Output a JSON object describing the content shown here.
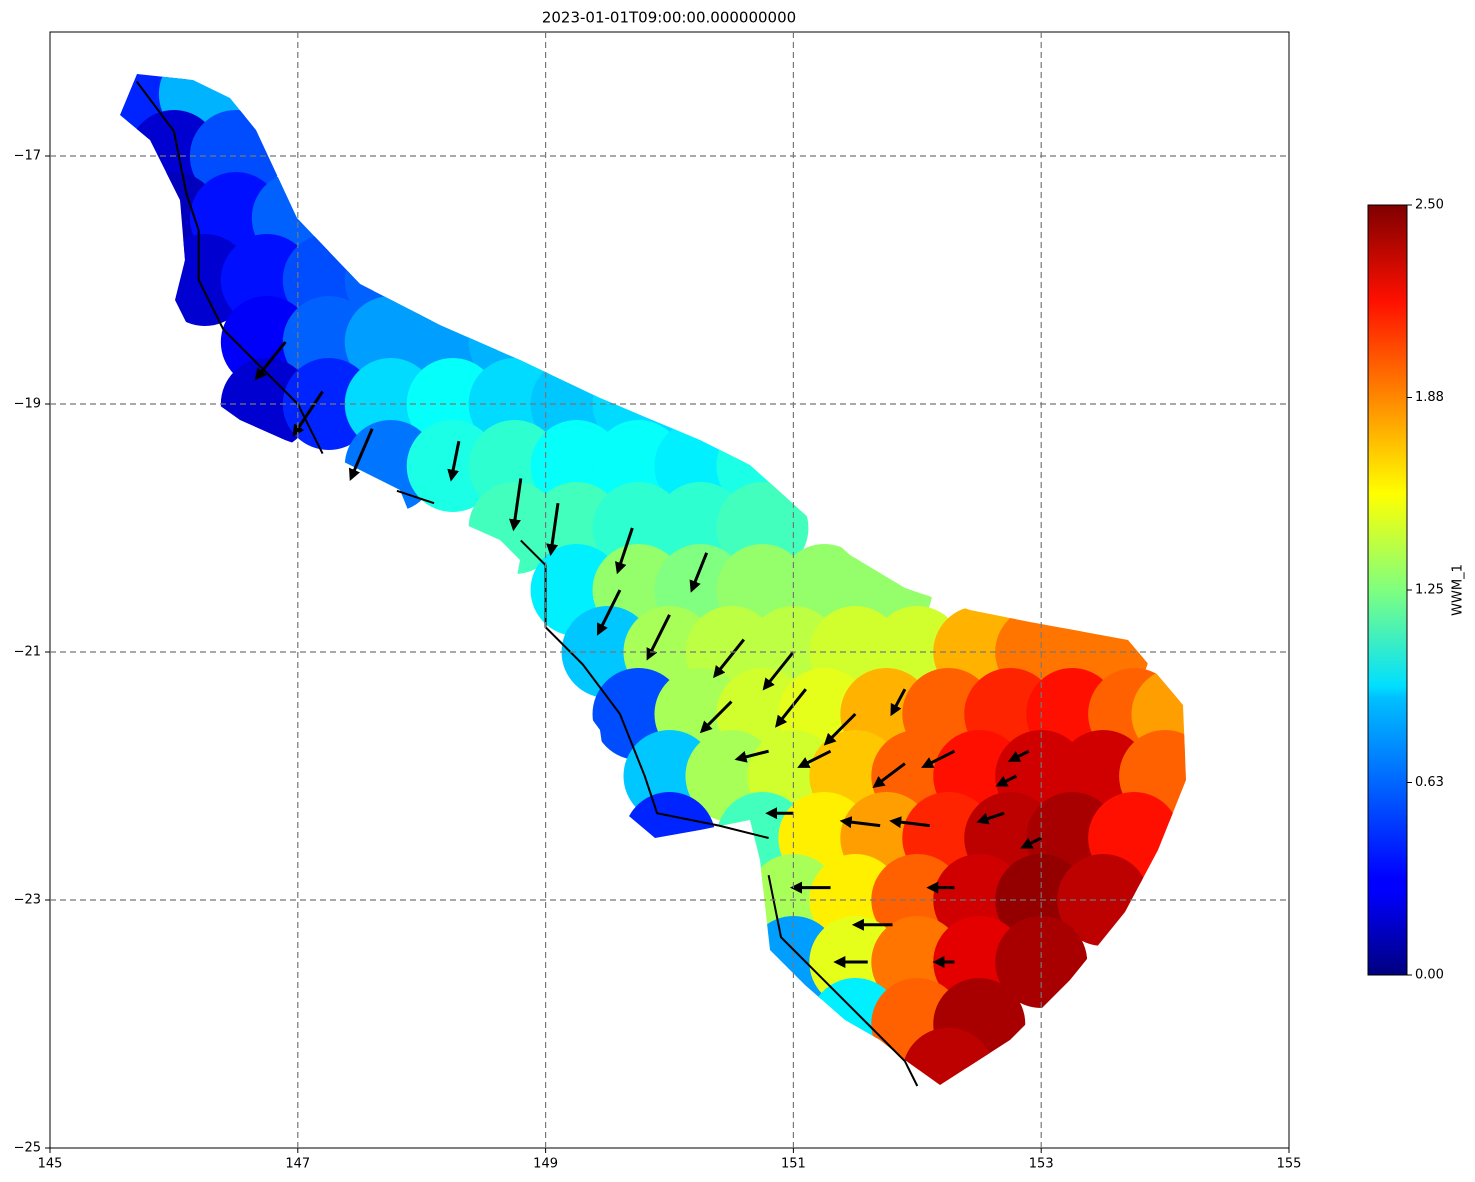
{
  "chart_data": {
    "type": "mesh",
    "title": "2023-01-01T09:00:00.000000000",
    "xlim": [
      145,
      155
    ],
    "ylim": [
      -25,
      -16
    ],
    "xticks": [
      145,
      147,
      149,
      151,
      153,
      155
    ],
    "yticks": [
      {
        "value": -25,
        "label": "−25"
      },
      {
        "value": -23,
        "label": "−23"
      },
      {
        "value": -21,
        "label": "−21"
      },
      {
        "value": -19,
        "label": "−19"
      },
      {
        "value": -17,
        "label": "−17"
      }
    ],
    "grid": true,
    "colormap": "jet",
    "clim": [
      0,
      2.5
    ],
    "cticks": [
      {
        "value": 0,
        "label": "0.00"
      },
      {
        "value": 0.625,
        "label": "0.63"
      },
      {
        "value": 1.25,
        "label": "1.25"
      },
      {
        "value": 1.875,
        "label": "1.88"
      },
      {
        "value": 2.5,
        "label": "2.50"
      }
    ],
    "clabel": "WWM_1",
    "x": [
      145.75,
      146.25,
      146.0,
      146.5,
      146.0,
      146.5,
      147.0,
      146.25,
      146.75,
      147.25,
      147.75,
      146.75,
      147.25,
      147.75,
      148.25,
      148.75,
      146.75,
      147.25,
      147.75,
      148.25,
      148.75,
      149.25,
      149.75,
      147.75,
      148.25,
      148.75,
      149.25,
      149.75,
      150.25,
      150.75,
      148.75,
      149.25,
      149.75,
      150.25,
      150.75,
      149.25,
      149.75,
      150.25,
      150.75,
      151.25,
      151.75,
      149.5,
      150.0,
      150.5,
      151.0,
      151.5,
      152.0,
      152.5,
      153.0,
      153.5,
      149.75,
      150.25,
      150.75,
      151.25,
      151.75,
      152.25,
      152.75,
      153.25,
      153.75,
      154.1,
      150.0,
      150.5,
      151.0,
      151.5,
      152.0,
      152.5,
      153.0,
      153.5,
      154.0,
      150.0,
      150.75,
      151.25,
      151.75,
      152.25,
      152.75,
      153.25,
      153.75,
      151.0,
      151.5,
      152.0,
      152.5,
      153.0,
      153.5,
      151.0,
      151.5,
      152.0,
      152.5,
      153.0,
      151.5,
      152.0,
      152.5,
      152.25
    ],
    "y": [
      -16.5,
      -16.5,
      -17.0,
      -17.0,
      -17.5,
      -17.5,
      -17.5,
      -18.0,
      -18.0,
      -18.0,
      -18.0,
      -18.5,
      -18.5,
      -18.5,
      -18.5,
      -18.5,
      -19.0,
      -19.0,
      -19.0,
      -19.0,
      -19.0,
      -19.0,
      -19.0,
      -19.5,
      -19.5,
      -19.5,
      -19.5,
      -19.5,
      -19.5,
      -19.5,
      -20.0,
      -20.0,
      -20.0,
      -20.0,
      -20.0,
      -20.5,
      -20.5,
      -20.5,
      -20.5,
      -20.5,
      -20.5,
      -21.0,
      -21.0,
      -21.0,
      -21.0,
      -21.0,
      -21.0,
      -21.0,
      -21.0,
      -21.0,
      -21.5,
      -21.5,
      -21.5,
      -21.5,
      -21.5,
      -21.5,
      -21.5,
      -21.5,
      -21.5,
      -21.5,
      -22.0,
      -22.0,
      -22.0,
      -22.0,
      -22.0,
      -22.0,
      -22.0,
      -22.0,
      -22.0,
      -22.5,
      -22.5,
      -22.5,
      -22.5,
      -22.5,
      -22.5,
      -22.5,
      -22.5,
      -23.0,
      -23.0,
      -23.0,
      -23.0,
      -23.0,
      -23.0,
      -23.5,
      -23.5,
      -23.5,
      -23.5,
      -23.5,
      -24.0,
      -24.0,
      -24.0,
      -24.4
    ],
    "values": [
      0.4,
      0.75,
      0.2,
      0.5,
      0.15,
      0.35,
      0.55,
      0.2,
      0.35,
      0.5,
      0.55,
      0.3,
      0.55,
      0.7,
      0.7,
      0.75,
      0.2,
      0.4,
      0.85,
      0.95,
      0.85,
      0.8,
      0.85,
      0.6,
      1.0,
      1.05,
      0.95,
      0.95,
      0.9,
      1.0,
      1.1,
      1.1,
      1.05,
      1.05,
      1.1,
      0.9,
      1.3,
      1.25,
      1.3,
      1.3,
      1.3,
      0.8,
      1.35,
      1.4,
      1.4,
      1.45,
      1.45,
      1.75,
      1.9,
      1.9,
      0.5,
      1.35,
      1.45,
      1.5,
      1.75,
      1.95,
      2.1,
      2.15,
      1.95,
      1.8,
      0.8,
      1.35,
      1.45,
      1.7,
      1.95,
      2.15,
      2.3,
      2.3,
      1.95,
      0.4,
      1.1,
      1.6,
      1.8,
      2.1,
      2.35,
      2.4,
      2.15,
      1.35,
      1.6,
      1.95,
      2.3,
      2.45,
      2.35,
      0.7,
      1.5,
      1.9,
      2.25,
      2.4,
      0.9,
      1.95,
      2.4,
      2.35
    ],
    "quiver": {
      "x": [
        146.9,
        147.2,
        147.6,
        148.3,
        148.8,
        149.1,
        149.7,
        150.3,
        149.6,
        150.0,
        150.6,
        151.0,
        150.5,
        151.1,
        151.5,
        151.9,
        150.8,
        151.3,
        151.9,
        152.3,
        151.0,
        151.7,
        152.1,
        152.7,
        151.3,
        151.8,
        152.3,
        151.6,
        152.3,
        152.8,
        153.0,
        152.9
      ],
      "y": [
        -18.5,
        -18.9,
        -19.2,
        -19.3,
        -19.6,
        -19.8,
        -20.0,
        -20.2,
        -20.5,
        -20.7,
        -20.9,
        -21.0,
        -21.4,
        -21.3,
        -21.5,
        -21.3,
        -21.8,
        -21.8,
        -21.9,
        -21.8,
        -22.3,
        -22.4,
        -22.4,
        -22.3,
        -22.9,
        -23.2,
        -22.9,
        -23.5,
        -23.5,
        -22.0,
        -22.5,
        -21.8
      ],
      "u": [
        -0.2,
        -0.2,
        -0.15,
        -0.05,
        -0.05,
        -0.05,
        -0.1,
        -0.1,
        -0.15,
        -0.15,
        -0.2,
        -0.2,
        -0.2,
        -0.2,
        -0.2,
        -0.08,
        -0.2,
        -0.2,
        -0.2,
        -0.2,
        -0.15,
        -0.25,
        -0.25,
        -0.15,
        -0.25,
        -0.25,
        -0.15,
        -0.2,
        -0.1,
        -0.1,
        -0.1,
        -0.1
      ],
      "v": [
        -0.25,
        -0.3,
        -0.35,
        -0.25,
        -0.35,
        -0.35,
        -0.3,
        -0.25,
        -0.3,
        -0.3,
        -0.25,
        -0.25,
        -0.2,
        -0.25,
        -0.2,
        -0.15,
        -0.05,
        -0.1,
        -0.15,
        -0.1,
        0,
        0.03,
        0.03,
        -0.05,
        0,
        0,
        0,
        0,
        0,
        -0.05,
        -0.05,
        -0.05
      ]
    },
    "coastline": {
      "x": [
        145.7,
        146.0,
        146.1,
        146.2,
        146.2,
        146.4,
        146.7,
        147.0,
        147.2,
        null,
        147.8,
        148.1,
        null,
        148.8,
        149.0,
        149.0,
        149.3,
        149.6,
        149.8,
        149.9,
        150.4,
        150.8,
        null,
        150.8,
        150.9,
        151.2,
        151.6,
        151.9,
        152.0
      ],
      "y": [
        -16.4,
        -16.8,
        -17.3,
        -17.6,
        -18.0,
        -18.4,
        -18.7,
        -19.0,
        -19.4,
        null,
        -19.7,
        -19.8,
        null,
        -20.1,
        -20.3,
        -20.8,
        -21.1,
        -21.5,
        -22.0,
        -22.3,
        -22.4,
        -22.5,
        null,
        -22.8,
        -23.3,
        -23.6,
        -24.0,
        -24.3,
        -24.5
      ]
    }
  }
}
